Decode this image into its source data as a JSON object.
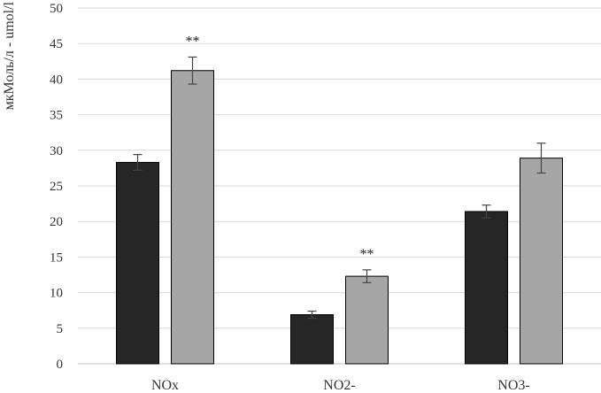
{
  "chart_data": {
    "type": "bar",
    "ylabel": "мкМоль/л - umol/l",
    "ylim": [
      0,
      50
    ],
    "yticks": [
      0,
      5,
      10,
      15,
      20,
      25,
      30,
      35,
      40,
      45,
      50
    ],
    "grid": true,
    "categories": [
      "NOx",
      "NO2-",
      "NO3-"
    ],
    "series": [
      {
        "values": [
          28.3,
          6.9,
          21.4
        ],
        "errors": [
          1.1,
          0.5,
          0.9
        ],
        "color": "#262626"
      },
      {
        "values": [
          41.2,
          12.3,
          28.9
        ],
        "errors": [
          1.9,
          0.9,
          2.1
        ],
        "color": "#a6a6a6"
      }
    ],
    "annotations": [
      {
        "text": "**",
        "category": "NOx",
        "series": 1
      },
      {
        "text": "**",
        "category": "NO2-",
        "series": 1
      }
    ]
  }
}
